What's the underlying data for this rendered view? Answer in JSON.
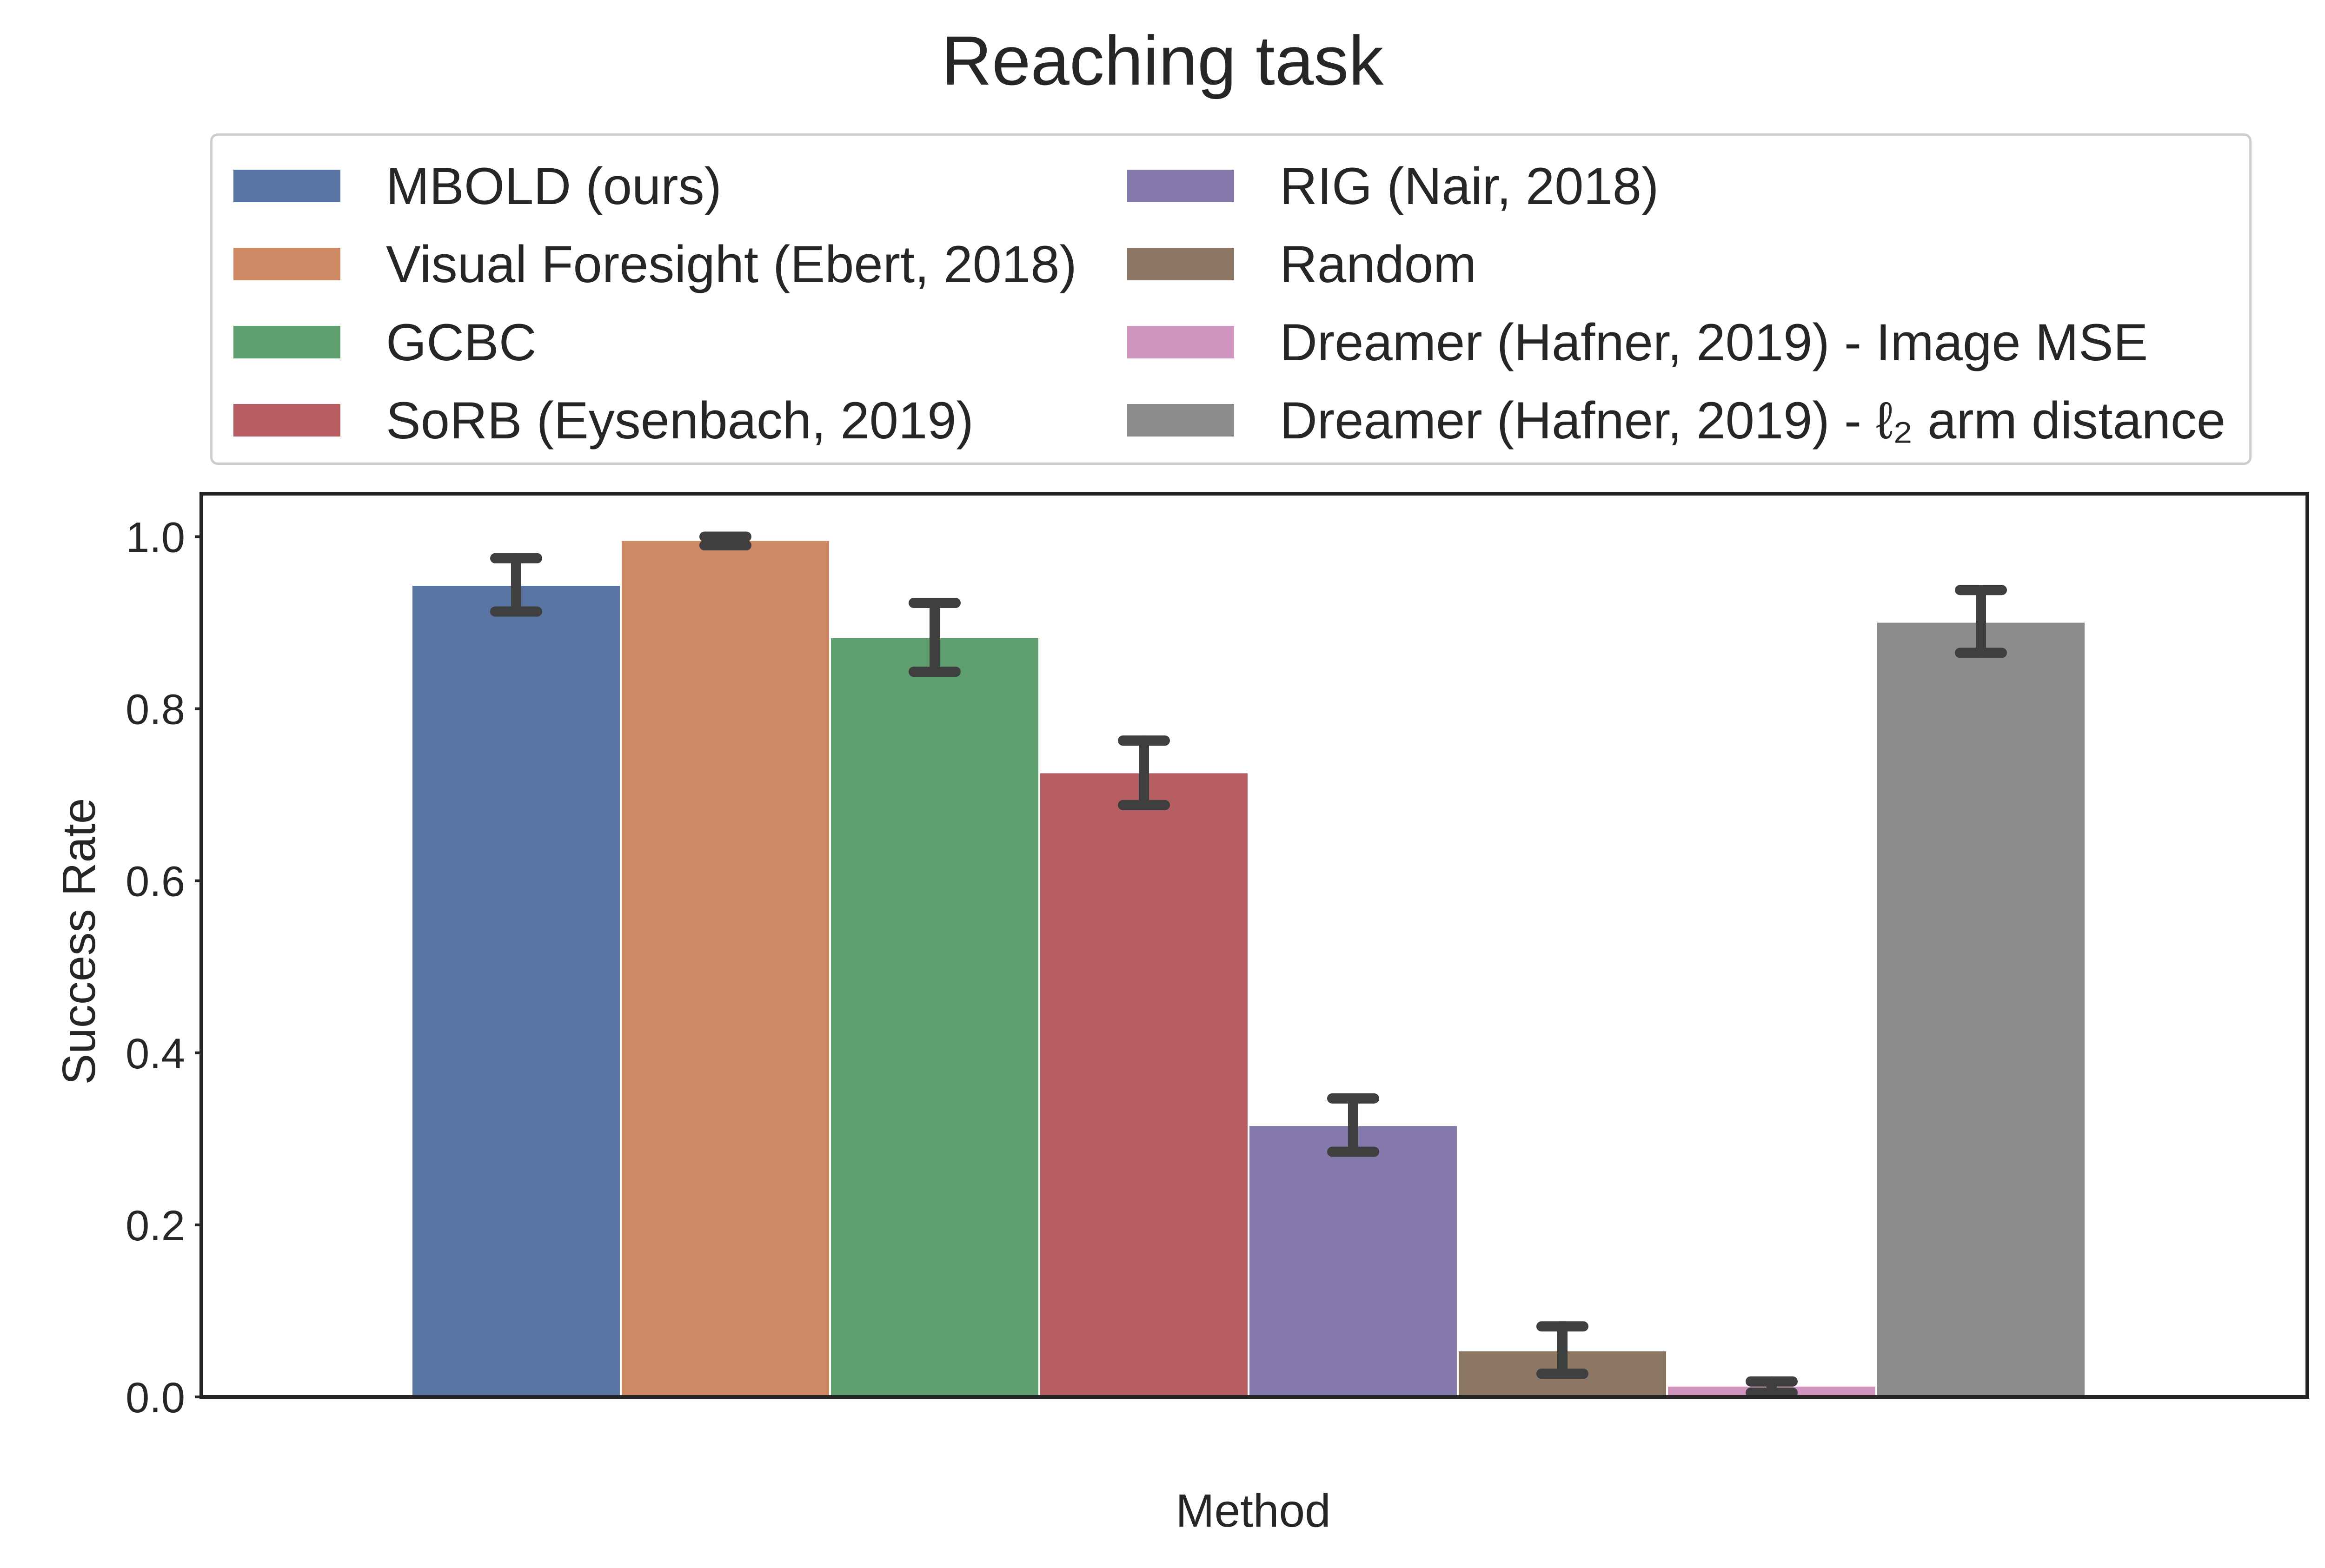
{
  "chart_data": {
    "type": "bar",
    "title": "Reaching task",
    "xlabel": "Method",
    "ylabel": "Success Rate",
    "ylim": [
      0,
      1.05
    ],
    "yticks": [
      "0.0",
      "0.2",
      "0.4",
      "0.6",
      "0.8",
      "1.0"
    ],
    "ytick_values": [
      0.0,
      0.2,
      0.4,
      0.6,
      0.8,
      1.0
    ],
    "legend_position": "top, above plot, two columns",
    "grid": false,
    "series": [
      {
        "name": "MBOLD (ours)",
        "value": 0.943,
        "err_low": 0.913,
        "err_high": 0.975,
        "color": "#5875a4"
      },
      {
        "name": "Visual Foresight (Ebert, 2018)",
        "value": 0.995,
        "err_low": 0.99,
        "err_high": 1.0,
        "color": "#cc8963"
      },
      {
        "name": "GCBC",
        "value": 0.882,
        "err_low": 0.843,
        "err_high": 0.923,
        "color": "#5f9e6e"
      },
      {
        "name": "SoRB (Eysenbach, 2019)",
        "value": 0.725,
        "err_low": 0.688,
        "err_high": 0.763,
        "color": "#b55d60"
      },
      {
        "name": "RIG (Nair, 2018)",
        "value": 0.315,
        "err_low": 0.285,
        "err_high": 0.347,
        "color": "#857aab"
      },
      {
        "name": "Random",
        "value": 0.053,
        "err_low": 0.027,
        "err_high": 0.082,
        "color": "#8d7866"
      },
      {
        "name": "Dreamer (Hafner, 2019) - Image MSE",
        "value": 0.012,
        "err_low": 0.005,
        "err_high": 0.018,
        "color": "#d095bf"
      },
      {
        "name": "Dreamer (Hafner, 2019) - ℓ₂ arm distance",
        "value": 0.9,
        "err_low": 0.865,
        "err_high": 0.938,
        "color": "#8c8c8c"
      }
    ]
  }
}
